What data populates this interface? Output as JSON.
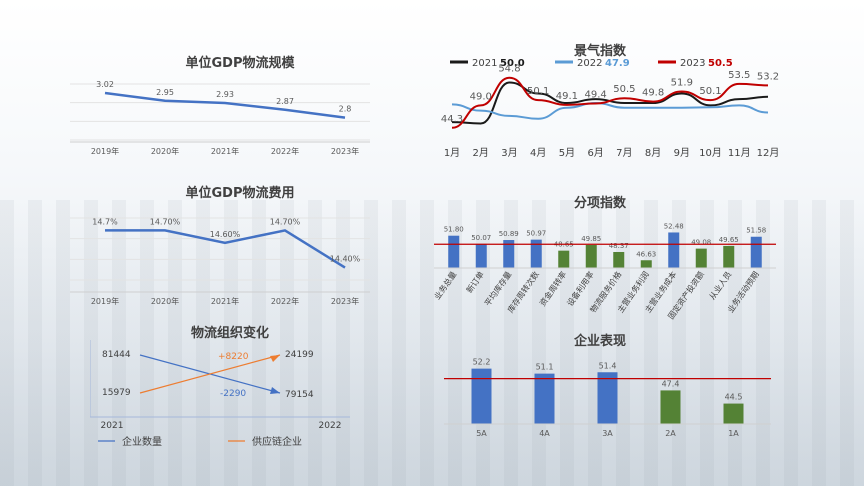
{
  "chart_data": [
    {
      "type": "line",
      "title": "单位GDP物流规模",
      "categories": [
        "2019年",
        "2020年",
        "2021年",
        "2022年",
        "2023年"
      ],
      "values": [
        3.02,
        2.95,
        2.93,
        2.87,
        2.8
      ],
      "labels": [
        "3.02",
        "2.95",
        "2.93",
        "2.87",
        "2.8"
      ],
      "ylim": [
        2.6,
        3.1
      ],
      "color": "#4472C4"
    },
    {
      "type": "line",
      "title": "单位GDP物流费用",
      "categories": [
        "2019年",
        "2020年",
        "2021年",
        "2022年",
        "2023年"
      ],
      "values": [
        14.7,
        14.7,
        14.6,
        14.7,
        14.4
      ],
      "labels": [
        "14.7%",
        "14.70%",
        "14.60%",
        "14.70%",
        "14.40%"
      ],
      "ylim": [
        14.3,
        14.8
      ],
      "color": "#4472C4"
    },
    {
      "type": "line",
      "title": "物流组织变化",
      "categories": [
        "2021",
        "2022"
      ],
      "series": [
        {
          "name": "企业数量",
          "values": [
            81444,
            79154
          ],
          "change": "-2290",
          "color": "#4472C4"
        },
        {
          "name": "供应链企业",
          "values": [
            15979,
            24199
          ],
          "change": "+8220",
          "color": "#ED7D31"
        }
      ]
    },
    {
      "type": "line",
      "title": "景气指数",
      "categories": [
        "1月",
        "2月",
        "3月",
        "4月",
        "5月",
        "6月",
        "7月",
        "8月",
        "9月",
        "10月",
        "11月",
        "12月"
      ],
      "ylim": [
        43,
        56
      ],
      "series": [
        {
          "name": "2021",
          "summary": "50.0",
          "color": "#1a1a1a",
          "values": [
            45.5,
            45.2,
            53.8,
            51.5,
            49.5,
            50.3,
            49.5,
            49.5,
            51.5,
            49.0,
            50.3,
            50.8
          ]
        },
        {
          "name": "2022",
          "summary": "47.9",
          "color": "#5B9BD5",
          "values": [
            49.2,
            47.9,
            46.8,
            46.2,
            48.5,
            49.5,
            48.5,
            48.5,
            48.5,
            48.6,
            49.0,
            47.5
          ]
        },
        {
          "name": "2023",
          "summary": "50.5",
          "color": "#C00000",
          "values": [
            44.3,
            49.0,
            54.8,
            50.1,
            49.1,
            49.4,
            50.5,
            49.8,
            51.9,
            50.1,
            53.5,
            53.2
          ]
        }
      ],
      "data_labels": [
        "44.3",
        "49.0",
        "54.8",
        "50.1",
        "49.1",
        "49.4",
        "50.5",
        "49.8",
        "51.9",
        "50.1",
        "53.5",
        "53.2"
      ]
    },
    {
      "type": "bar",
      "title": "分项指数",
      "categories": [
        "业务总量",
        "新订单",
        "平均库存量",
        "库存周转次数",
        "资金周转率",
        "设备利用率",
        "物流服务价格",
        "主营业务利润",
        "主营业务成本",
        "固定资产投资额",
        "从业人员",
        "业务活动预期"
      ],
      "values": [
        51.8,
        50.07,
        50.89,
        50.97,
        48.65,
        49.85,
        48.37,
        46.63,
        52.48,
        49.08,
        49.65,
        51.58
      ],
      "labels": [
        "51.80",
        "50.07",
        "50.89",
        "50.97",
        "48.65",
        "49.85",
        "48.37",
        "46.63",
        "52.48",
        "49.08",
        "49.65",
        "51.58"
      ],
      "colors": [
        "#4472C4",
        "#4472C4",
        "#4472C4",
        "#4472C4",
        "#548235",
        "#548235",
        "#548235",
        "#548235",
        "#4472C4",
        "#548235",
        "#548235",
        "#4472C4"
      ],
      "reference": 50,
      "ylim": [
        45,
        53
      ]
    },
    {
      "type": "bar",
      "title": "企业表现",
      "categories": [
        "5A",
        "4A",
        "3A",
        "2A",
        "1A"
      ],
      "values": [
        52.2,
        51.1,
        51.4,
        47.4,
        44.5
      ],
      "labels": [
        "52.2",
        "51.1",
        "51.4",
        "47.4",
        "44.5"
      ],
      "colors": [
        "#4472C4",
        "#4472C4",
        "#4472C4",
        "#548235",
        "#548235"
      ],
      "reference": 50,
      "ylim": [
        40,
        53
      ]
    }
  ]
}
